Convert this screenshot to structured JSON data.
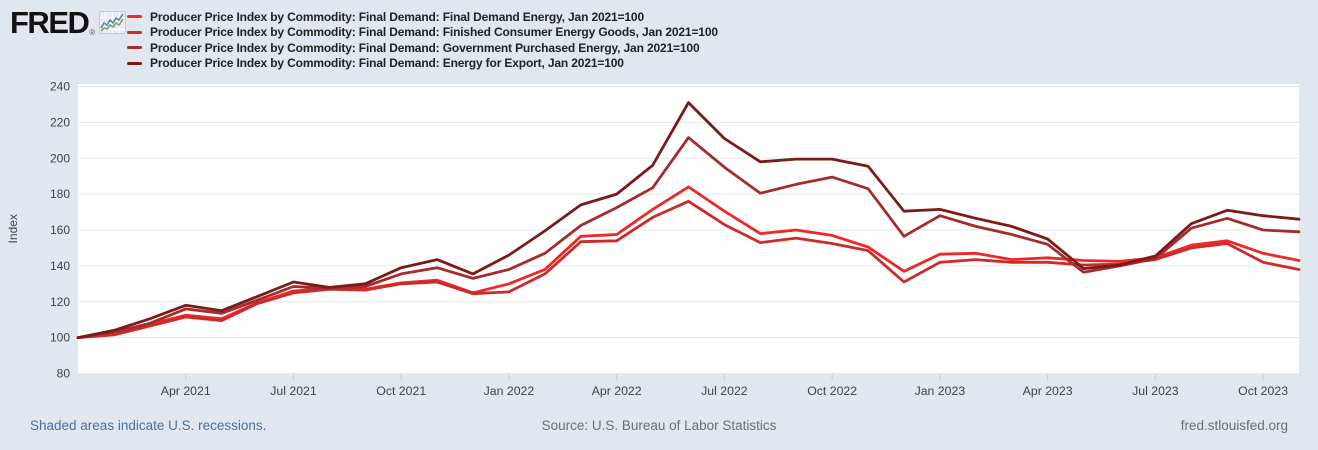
{
  "header": {
    "logo_text": "FRED",
    "logo_registered": "®",
    "legend": [
      {
        "label": "Producer Price Index by Commodity: Final Demand: Final Demand Energy, Jan 2021=100",
        "color": "#ee2727"
      },
      {
        "label": "Producer Price Index by Commodity: Final Demand: Finished Consumer Energy Goods, Jan 2021=100",
        "color": "#cd2a2a"
      },
      {
        "label": "Producer Price Index by Commodity: Final Demand: Government Purchased Energy, Jan 2021=100",
        "color": "#a42c2c"
      },
      {
        "label": "Producer Price Index by Commodity: Final Demand: Energy for Export, Jan 2021=100",
        "color": "#7c1a1a"
      }
    ]
  },
  "chart_data": {
    "type": "line",
    "ylabel": "Index",
    "ylim": [
      80,
      240
    ],
    "yticks": [
      80,
      100,
      120,
      140,
      160,
      180,
      200,
      220,
      240
    ],
    "grid": true,
    "legend_position": "top-left",
    "x": [
      "Jan 2021",
      "Feb 2021",
      "Mar 2021",
      "Apr 2021",
      "May 2021",
      "Jun 2021",
      "Jul 2021",
      "Aug 2021",
      "Sep 2021",
      "Oct 2021",
      "Nov 2021",
      "Dec 2021",
      "Jan 2022",
      "Feb 2022",
      "Mar 2022",
      "Apr 2022",
      "May 2022",
      "Jun 2022",
      "Jul 2022",
      "Aug 2022",
      "Sep 2022",
      "Oct 2022",
      "Nov 2022",
      "Dec 2022",
      "Jan 2023",
      "Feb 2023",
      "Mar 2023",
      "Apr 2023",
      "May 2023",
      "Jun 2023",
      "Jul 2023",
      "Aug 2023",
      "Sep 2023",
      "Oct 2023",
      "Nov 2023"
    ],
    "x_tick_labels": [
      "Apr 2021",
      "Jul 2021",
      "Oct 2021",
      "Jan 2022",
      "Apr 2022",
      "Jul 2022",
      "Oct 2022",
      "Jan 2023",
      "Apr 2023",
      "Jul 2023",
      "Oct 2023"
    ],
    "series": [
      {
        "name": "Producer Price Index by Commodity: Final Demand: Final Demand Energy, Jan 2021=100",
        "color": "#ee2727",
        "values": [
          100,
          102,
          107.5,
          112.5,
          110.5,
          119.5,
          126,
          127.5,
          127,
          130.5,
          132,
          125,
          130,
          138,
          156.5,
          157.5,
          171.5,
          184,
          170.5,
          158,
          160,
          157,
          150.5,
          137,
          146.5,
          147,
          143.5,
          144.5,
          143,
          142.5,
          144.5,
          151.5,
          154,
          147,
          143
        ]
      },
      {
        "name": "Producer Price Index by Commodity: Final Demand: Finished Consumer Energy Goods, Jan 2021=100",
        "color": "#cd2a2a",
        "values": [
          100,
          101.5,
          106.5,
          111.5,
          109.5,
          119,
          125,
          127,
          126.5,
          130,
          131,
          124.5,
          125.5,
          135.5,
          153.5,
          154,
          167,
          176,
          163,
          153,
          155.5,
          152.5,
          148.5,
          131,
          142,
          143.5,
          142,
          142,
          140.5,
          141,
          143.5,
          150,
          152.5,
          142,
          138
        ]
      },
      {
        "name": "Producer Price Index by Commodity: Final Demand: Government Purchased Energy, Jan 2021=100",
        "color": "#a42c2c",
        "values": [
          100,
          103,
          108,
          116,
          113.5,
          121,
          128.5,
          127.5,
          128.5,
          135.5,
          139,
          133,
          138,
          147,
          162.5,
          172.5,
          183.5,
          211.5,
          195,
          180.5,
          185.5,
          189.5,
          183,
          156.5,
          168,
          162,
          157.5,
          152,
          136.5,
          140,
          144,
          161,
          166.5,
          160,
          159
        ]
      },
      {
        "name": "Producer Price Index by Commodity: Final Demand: Energy for Export, Jan 2021=100",
        "color": "#7c1a1a",
        "values": [
          100,
          104,
          110.5,
          118,
          115,
          123,
          131,
          128,
          130,
          139,
          143.5,
          135.5,
          146,
          159.5,
          174,
          180,
          196,
          231,
          211,
          198,
          199.5,
          199.5,
          195.5,
          170.5,
          171.5,
          166.5,
          162,
          155,
          138.5,
          140.5,
          145.5,
          163.5,
          171,
          168,
          166
        ]
      }
    ],
    "colors": {
      "plot_background": "#ffffff",
      "page_background": "#e0e7ef",
      "gridline": "#e7e7e7",
      "tick": "#c2cfdc",
      "axis_text": "#424242"
    }
  },
  "footer": {
    "recession_note": "Shaded areas indicate U.S. recessions.",
    "source": "Source: U.S. Bureau of Labor Statistics",
    "site": "fred.stlouisfed.org"
  }
}
